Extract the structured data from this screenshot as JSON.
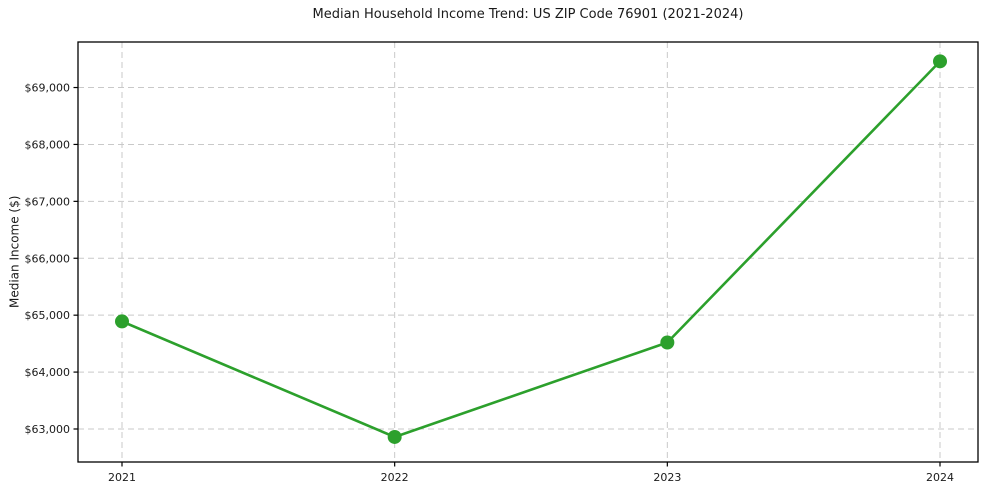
{
  "chart_data": {
    "type": "line",
    "title": "Median Household Income Trend: US ZIP Code 76901 (2021-2024)",
    "xlabel": "",
    "ylabel": "Median Income ($)",
    "categories": [
      "2021",
      "2022",
      "2023",
      "2024"
    ],
    "series": [
      {
        "name": "Median Household Income",
        "values": [
          64890,
          62860,
          64520,
          69460
        ]
      }
    ],
    "ylim": [
      62420,
      69800
    ],
    "yticks": [
      63000,
      64000,
      65000,
      66000,
      67000,
      68000,
      69000
    ],
    "ytick_labels": [
      "$63,000",
      "$64,000",
      "$65,000",
      "$66,000",
      "$67,000",
      "$68,000",
      "$69,000"
    ],
    "grid": true,
    "grid_style": "dashed",
    "legend_position": "none",
    "colors": {
      "line": "#2ca02c",
      "marker": "#2ca02c",
      "grid": "#c9c9c9",
      "axis": "#000000",
      "text": "#1a1a1a",
      "background": "#ffffff"
    }
  }
}
